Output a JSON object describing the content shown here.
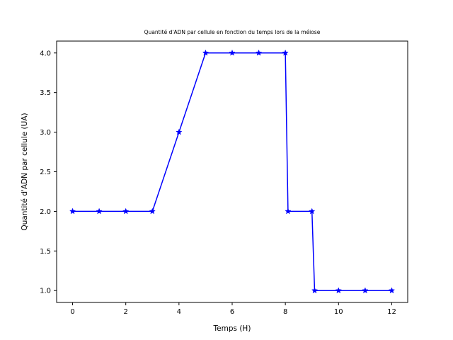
{
  "chart_data": {
    "type": "line",
    "title": "Quantité d'ADN par cellule en fonction du temps lors de la méiose",
    "xlabel": "Temps (H)",
    "ylabel": "Quantité d'ADN par cellule (UA)",
    "xlim": [
      -0.6,
      12.6
    ],
    "ylim": [
      0.85,
      4.15
    ],
    "xticks": [
      0,
      2,
      4,
      6,
      8,
      10,
      12
    ],
    "yticks": [
      1.0,
      1.5,
      2.0,
      2.5,
      3.0,
      3.5,
      4.0
    ],
    "xtick_labels": [
      "0",
      "2",
      "4",
      "6",
      "8",
      "10",
      "12"
    ],
    "ytick_labels": [
      "1.0",
      "1.5",
      "2.0",
      "2.5",
      "3.0",
      "3.5",
      "4.0"
    ],
    "grid": false,
    "series": [
      {
        "color": "#0000ff",
        "marker": "star",
        "x": [
          0,
          1,
          2,
          3,
          4,
          5,
          6,
          7,
          8,
          8.1,
          9,
          9.1,
          10,
          11,
          12
        ],
        "y": [
          2,
          2,
          2,
          2,
          3,
          4,
          4,
          4,
          4,
          2,
          2,
          1,
          1,
          1,
          1
        ]
      }
    ]
  }
}
